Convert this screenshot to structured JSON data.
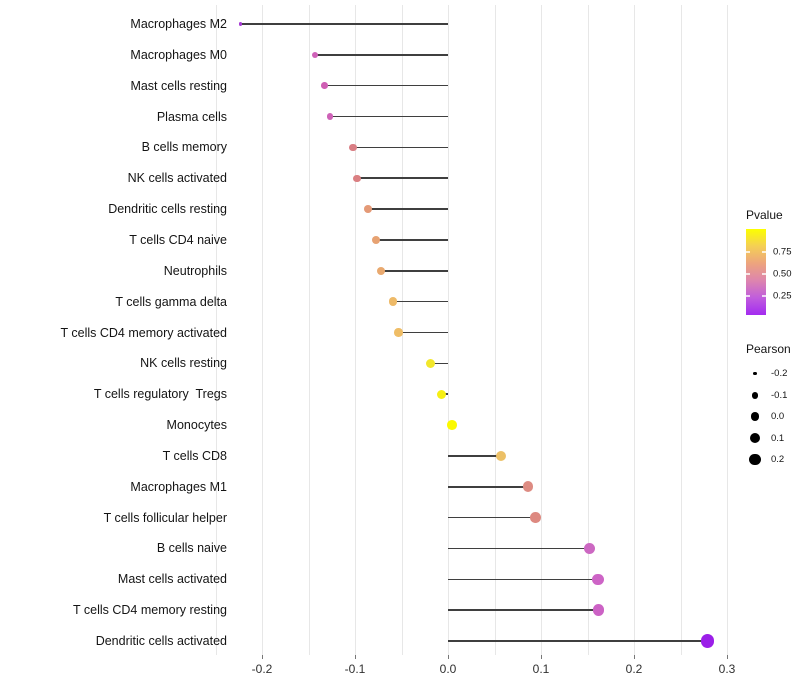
{
  "chart_data": {
    "type": "scatter",
    "subtype": "lollipop",
    "orientation": "horizontal",
    "title": "",
    "xlabel": "",
    "ylabel": "",
    "grid": "vertical-only",
    "baseline": 0,
    "x_axis": {
      "tick_values": [
        -0.2,
        -0.1,
        0.0,
        0.1,
        0.2,
        0.3
      ],
      "tick_labels": [
        "-0.2",
        "-0.1",
        "0.0",
        "0.1",
        "0.2",
        "0.3"
      ],
      "range": [
        -0.25,
        0.315
      ],
      "minor_step": 0.05
    },
    "points": [
      {
        "label": "Macrophages M2",
        "pearson": -0.223,
        "color": "#a63bd4",
        "diameter": 3.2
      },
      {
        "label": "Macrophages M0",
        "pearson": -0.143,
        "color": "#cf62b8",
        "diameter": 6.4
      },
      {
        "label": "Mast cells resting",
        "pearson": -0.133,
        "color": "#cf5fb4",
        "diameter": 6.6
      },
      {
        "label": "Plasma cells",
        "pearson": -0.127,
        "color": "#ce62b7",
        "diameter": 6.7
      },
      {
        "label": "B cells memory",
        "pearson": -0.102,
        "color": "#d97e84",
        "diameter": 7.4
      },
      {
        "label": "NK cells activated",
        "pearson": -0.098,
        "color": "#da7f82",
        "diameter": 7.5
      },
      {
        "label": "Dendritic cells resting",
        "pearson": -0.086,
        "color": "#e49a77",
        "diameter": 7.8
      },
      {
        "label": "T cells CD4 naive",
        "pearson": -0.077,
        "color": "#e7a272",
        "diameter": 8.0
      },
      {
        "label": "Neutrophils",
        "pearson": -0.072,
        "color": "#e9a96f",
        "diameter": 8.1
      },
      {
        "label": "T cells gamma delta",
        "pearson": -0.059,
        "color": "#eeba68",
        "diameter": 8.4
      },
      {
        "label": "T cells CD4 memory activated",
        "pearson": -0.053,
        "color": "#efbd66",
        "diameter": 8.5
      },
      {
        "label": "NK cells resting",
        "pearson": -0.019,
        "color": "#f2e72b",
        "diameter": 9.2
      },
      {
        "label": "T cells regulatory  Tregs",
        "pearson": -0.007,
        "color": "#f6ef13",
        "diameter": 9.4
      },
      {
        "label": "Monocytes",
        "pearson": 0.004,
        "color": "#fbf900",
        "diameter": 9.6
      },
      {
        "label": "T cells CD8",
        "pearson": 0.057,
        "color": "#ecc066",
        "diameter": 10.3
      },
      {
        "label": "Macrophages M1",
        "pearson": 0.086,
        "color": "#dd8b82",
        "diameter": 10.7
      },
      {
        "label": "T cells follicular helper",
        "pearson": 0.094,
        "color": "#dd8980",
        "diameter": 10.8
      },
      {
        "label": "B cells naive",
        "pearson": 0.152,
        "color": "#cc68c2",
        "diameter": 11.5
      },
      {
        "label": "Mast cells activated",
        "pearson": 0.161,
        "color": "#cd64c6",
        "diameter": 11.6
      },
      {
        "label": "T cells CD4 memory resting",
        "pearson": 0.162,
        "color": "#cc62c5",
        "diameter": 11.6
      },
      {
        "label": "Dendritic cells activated",
        "pearson": 0.279,
        "color": "#9b1fe8",
        "diameter": 13.2
      }
    ],
    "colors": {
      "background": "#ffffff",
      "gridline": "#e7e7e7",
      "stem": "#3f3f3f",
      "axis_text": "#303030",
      "label_text": "#141414"
    },
    "legends": {
      "pvalue": {
        "title": "Pvalue",
        "tick_labels": [
          "0.75",
          "0.50",
          "0.25"
        ],
        "gradient_stops": [
          "#fcff00",
          "#f4cf55",
          "#eda47e",
          "#dd85ae",
          "#c05ddd",
          "#a32bf0"
        ]
      },
      "pearson": {
        "title": "Pearson",
        "dot_color": "#000000",
        "entries": [
          {
            "label": "-0.2",
            "diameter": 3.4
          },
          {
            "label": "-0.1",
            "diameter": 6.6
          },
          {
            "label": "0.0",
            "diameter": 8.6
          },
          {
            "label": "0.1",
            "diameter": 10.0
          },
          {
            "label": "0.2",
            "diameter": 11.4
          }
        ]
      }
    }
  }
}
